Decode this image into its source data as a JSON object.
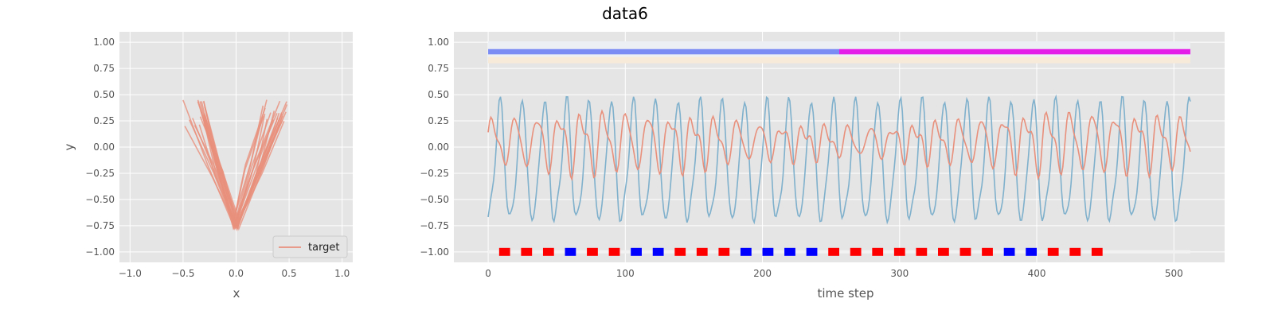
{
  "title": "data6",
  "colors": {
    "background": "#e5e5e5",
    "grid": "#ffffff",
    "target": "#e8907c",
    "signal": "#7fb0cc",
    "band_base": "#eceff4",
    "band_beige": "#f7ead8",
    "seg_phase1": "#7b8cf5",
    "seg_phase2": "#e51de8",
    "marker_red": "#ff0000",
    "marker_blue": "#0000ff"
  },
  "chart_data": [
    {
      "type": "line",
      "xlabel": "x",
      "ylabel": "y",
      "xlim": [
        -1.1,
        1.1
      ],
      "ylim": [
        -1.1,
        1.1
      ],
      "xticks": [
        "−1.0",
        "−0.5",
        "0.0",
        "0.5",
        "1.0"
      ],
      "xtick_values": [
        -1.0,
        -0.5,
        0.0,
        0.5,
        1.0
      ],
      "yticks": [
        "−1.00",
        "−0.75",
        "−0.50",
        "−0.25",
        "0.00",
        "0.25",
        "0.50",
        "0.75",
        "1.00"
      ],
      "ytick_values": [
        -1.0,
        -0.75,
        -0.5,
        -0.25,
        0.0,
        0.25,
        0.5,
        0.75,
        1.0
      ],
      "grid": true,
      "legend": {
        "placement": "lower-right",
        "entries": [
          "target"
        ]
      },
      "series": [
        {
          "name": "target",
          "description": "V-shaped strokes from upper-left to bottom (0,-0.78) and up to upper-right",
          "left_arm_top": [
            [
              -0.48,
              0.28
            ],
            [
              -0.45,
              0.46
            ],
            [
              -0.35,
              0.4
            ],
            [
              -0.28,
              0.3
            ],
            [
              -0.5,
              0.22
            ]
          ],
          "vertex": [
            0.0,
            -0.78
          ],
          "right_arm_top": [
            [
              0.3,
              0.35
            ],
            [
              0.38,
              0.4
            ],
            [
              0.45,
              0.45
            ],
            [
              0.48,
              0.25
            ],
            [
              0.42,
              0.32
            ]
          ]
        }
      ]
    },
    {
      "type": "line",
      "xlabel": "time step",
      "ylabel": "",
      "xlim": [
        -25,
        537
      ],
      "ylim": [
        -1.1,
        1.1
      ],
      "xticks": [
        "0",
        "100",
        "200",
        "300",
        "400",
        "500"
      ],
      "xtick_values": [
        0,
        100,
        200,
        300,
        400,
        500
      ],
      "yticks": [
        "−1.00",
        "−0.75",
        "−0.50",
        "−0.25",
        "0.00",
        "0.25",
        "0.50",
        "0.75",
        "1.00"
      ],
      "ytick_values": [
        -1.0,
        -0.75,
        -0.5,
        -0.25,
        0.0,
        0.25,
        0.5,
        0.75,
        1.0
      ],
      "grid": true,
      "n_steps": 512,
      "series": [
        {
          "name": "target",
          "y_start": 0.0,
          "y_end": -0.04,
          "y_range": [
            -0.47,
            0.48
          ]
        },
        {
          "name": "signal",
          "y_start": -0.68,
          "y_end": -0.75,
          "y_range": [
            -0.8,
            0.46
          ]
        }
      ],
      "segments": [
        {
          "x": [
            0,
            256
          ],
          "y": 0.91,
          "phase": 1
        },
        {
          "x": [
            256,
            512
          ],
          "y": 0.91,
          "phase": 2
        }
      ],
      "markers_y": -1.0,
      "markers": [
        "red",
        "red",
        "red",
        "blue",
        "red",
        "red",
        "blue",
        "blue",
        "red",
        "red",
        "red",
        "blue",
        "blue",
        "blue",
        "blue",
        "red",
        "red",
        "red",
        "red",
        "red",
        "red",
        "red",
        "red",
        "blue",
        "blue",
        "red",
        "red",
        "red"
      ]
    }
  ]
}
